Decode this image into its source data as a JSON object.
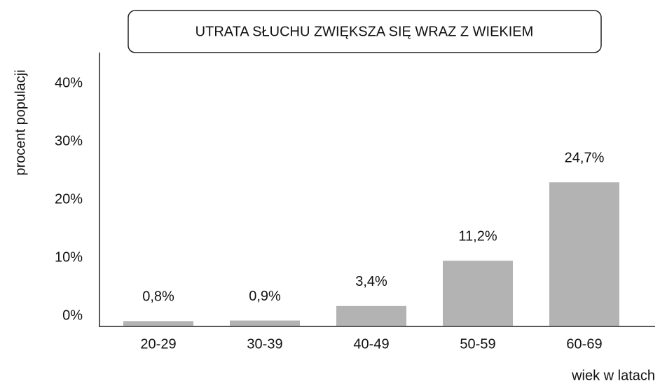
{
  "chart_data": {
    "type": "bar",
    "title": "UTRATA SŁUCHU ZWIĘKSZA SIĘ WRAZ Z WIEKIEM",
    "y_label": "procent populacji",
    "x_label": "wiek w latach",
    "categories": [
      "20-29",
      "30-39",
      "40-49",
      "50-59",
      "60-69"
    ],
    "values": [
      0.8,
      0.9,
      3.4,
      11.2,
      24.7
    ],
    "value_labels": [
      "0,8%",
      "0,9%",
      "3,4%",
      "11,2%",
      "24,7%"
    ],
    "color": "#b3b3b3",
    "ylim": [
      0,
      45
    ],
    "yticks": [
      {
        "value": 0,
        "label": "0%"
      },
      {
        "value": 10,
        "label": "10%"
      },
      {
        "value": 20,
        "label": "20%"
      },
      {
        "value": 30,
        "label": "30%"
      },
      {
        "value": 40,
        "label": "40%"
      }
    ],
    "grid": false
  }
}
